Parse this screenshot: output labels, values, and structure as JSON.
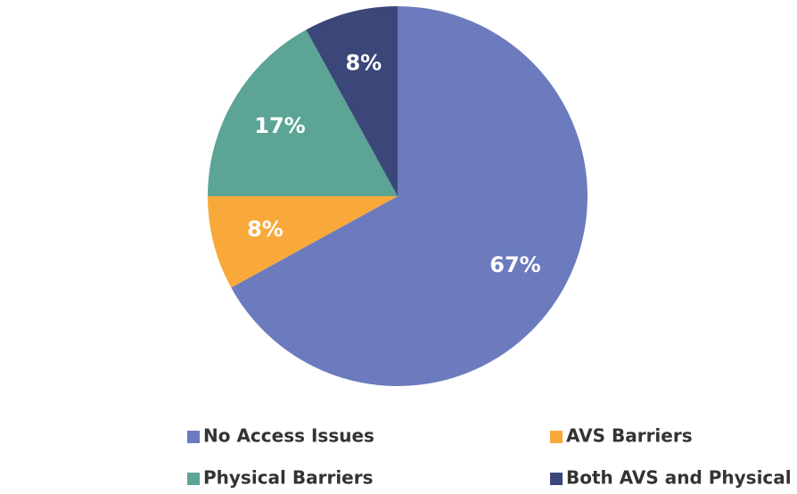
{
  "chart_data": {
    "type": "pie",
    "categories": [
      "No Access Issues",
      "AVS Barriers",
      "Physical Barriers",
      "Both AVS and Physical Barriers"
    ],
    "values": [
      67,
      8,
      17,
      8
    ],
    "value_labels": [
      "67%",
      "8%",
      "17%",
      "8%"
    ],
    "colors": [
      "#6b7bbd",
      "#f8a93a",
      "#5ca495",
      "#3b4779"
    ],
    "legend": "bottom"
  }
}
